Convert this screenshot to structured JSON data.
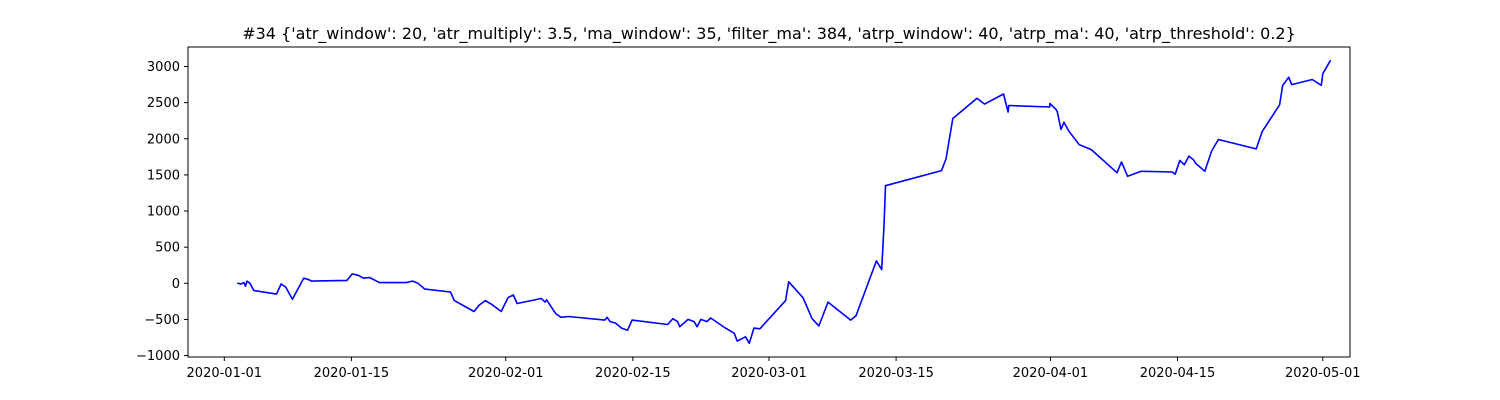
{
  "chart_data": {
    "type": "line",
    "title": "#34 {'atr_window': 20, 'atr_multiply': 3.5, 'ma_window': 35, 'filter_ma': 384, 'atrp_window': 40, 'atrp_ma': 40, 'atrp_threshold': 0.2}",
    "xlabel": "",
    "ylabel": "",
    "xlim": [
      "2019-12-28",
      "2020-05-04"
    ],
    "ylim": [
      -1020,
      3270
    ],
    "grid": false,
    "legend": "none",
    "x_ticks": [
      {
        "date": "2020-01-01",
        "label": "2020-01-01"
      },
      {
        "date": "2020-01-15",
        "label": "2020-01-15"
      },
      {
        "date": "2020-02-01",
        "label": "2020-02-01"
      },
      {
        "date": "2020-02-15",
        "label": "2020-02-15"
      },
      {
        "date": "2020-03-01",
        "label": "2020-03-01"
      },
      {
        "date": "2020-03-15",
        "label": "2020-03-15"
      },
      {
        "date": "2020-04-01",
        "label": "2020-04-01"
      },
      {
        "date": "2020-04-15",
        "label": "2020-04-15"
      },
      {
        "date": "2020-05-01",
        "label": "2020-05-01"
      }
    ],
    "y_ticks": [
      {
        "value": -1000,
        "label": "−1000"
      },
      {
        "value": -500,
        "label": "−500"
      },
      {
        "value": 0,
        "label": "0"
      },
      {
        "value": 500,
        "label": "500"
      },
      {
        "value": 1000,
        "label": "1000"
      },
      {
        "value": 1500,
        "label": "1500"
      },
      {
        "value": 2000,
        "label": "2000"
      },
      {
        "value": 2500,
        "label": "2500"
      },
      {
        "value": 3000,
        "label": "3000"
      }
    ],
    "series": [
      {
        "color": "#0000ff",
        "points": [
          [
            "2020-01-02 12:00",
            0
          ],
          [
            "2020-01-02 20:00",
            -10
          ],
          [
            "2020-01-03 04:00",
            10
          ],
          [
            "2020-01-03 08:00",
            -40
          ],
          [
            "2020-01-03 12:00",
            30
          ],
          [
            "2020-01-03 20:00",
            0
          ],
          [
            "2020-01-04 06:00",
            -100
          ],
          [
            "2020-01-06 18:00",
            -150
          ],
          [
            "2020-01-07 06:00",
            -10
          ],
          [
            "2020-01-07 18:00",
            -50
          ],
          [
            "2020-01-08 12:00",
            -220
          ],
          [
            "2020-01-09 18:00",
            70
          ],
          [
            "2020-01-10 08:00",
            50
          ],
          [
            "2020-01-10 14:00",
            30
          ],
          [
            "2020-01-14 12:00",
            40
          ],
          [
            "2020-01-15 02:00",
            130
          ],
          [
            "2020-01-15 18:00",
            110
          ],
          [
            "2020-01-16 08:00",
            70
          ],
          [
            "2020-01-17 00:00",
            80
          ],
          [
            "2020-01-18 02:00",
            10
          ],
          [
            "2020-01-21 00:00",
            10
          ],
          [
            "2020-01-21 18:00",
            30
          ],
          [
            "2020-01-22 08:00",
            0
          ],
          [
            "2020-01-23 02:00",
            -80
          ],
          [
            "2020-01-25 22:00",
            -120
          ],
          [
            "2020-01-26 08:00",
            -240
          ],
          [
            "2020-01-28 12:00",
            -390
          ],
          [
            "2020-01-29 02:00",
            -300
          ],
          [
            "2020-01-29 18:00",
            -240
          ],
          [
            "2020-01-30 10:00",
            -290
          ],
          [
            "2020-01-31 12:00",
            -390
          ],
          [
            "2020-02-01 06:00",
            -200
          ],
          [
            "2020-02-01 20:00",
            -160
          ],
          [
            "2020-02-02 06:00",
            -280
          ],
          [
            "2020-02-04 22:00",
            -210
          ],
          [
            "2020-02-05 08:00",
            -260
          ],
          [
            "2020-02-05 12:00",
            -230
          ],
          [
            "2020-02-06 12:00",
            -420
          ],
          [
            "2020-02-07 02:00",
            -470
          ],
          [
            "2020-02-07 22:00",
            -460
          ],
          [
            "2020-02-11 22:00",
            -510
          ],
          [
            "2020-02-12 04:00",
            -470
          ],
          [
            "2020-02-12 12:00",
            -530
          ],
          [
            "2020-02-13 02:00",
            -550
          ],
          [
            "2020-02-13 18:00",
            -620
          ],
          [
            "2020-02-14 10:00",
            -650
          ],
          [
            "2020-02-14 22:00",
            -510
          ],
          [
            "2020-02-18 20:00",
            -570
          ],
          [
            "2020-02-19 10:00",
            -490
          ],
          [
            "2020-02-19 22:00",
            -530
          ],
          [
            "2020-02-20 04:00",
            -600
          ],
          [
            "2020-02-21 02:00",
            -500
          ],
          [
            "2020-02-21 18:00",
            -530
          ],
          [
            "2020-02-22 02:00",
            -600
          ],
          [
            "2020-02-22 12:00",
            -500
          ],
          [
            "2020-02-23 04:00",
            -530
          ],
          [
            "2020-02-23 14:00",
            -480
          ],
          [
            "2020-02-25 02:00",
            -610
          ],
          [
            "2020-02-26 04:00",
            -690
          ],
          [
            "2020-02-26 12:00",
            -800
          ],
          [
            "2020-02-27 10:00",
            -740
          ],
          [
            "2020-02-27 20:00",
            -830
          ],
          [
            "2020-02-28 08:00",
            -620
          ],
          [
            "2020-02-29 00:00",
            -630
          ],
          [
            "2020-03-02 20:00",
            -240
          ],
          [
            "2020-03-03 04:00",
            20
          ],
          [
            "2020-03-04 18:00",
            -200
          ],
          [
            "2020-03-05 18:00",
            -490
          ],
          [
            "2020-03-06 12:00",
            -590
          ],
          [
            "2020-03-07 12:00",
            -260
          ],
          [
            "2020-03-10 00:00",
            -510
          ],
          [
            "2020-03-10 14:00",
            -450
          ],
          [
            "2020-03-12 20:00",
            310
          ],
          [
            "2020-03-13 10:00",
            190
          ],
          [
            "2020-03-13 16:00",
            800
          ],
          [
            "2020-03-13 20:00",
            1350
          ],
          [
            "2020-03-20 00:00",
            1560
          ],
          [
            "2020-03-20 12:00",
            1720
          ],
          [
            "2020-03-21 06:00",
            2280
          ],
          [
            "2020-03-23 22:00",
            2560
          ],
          [
            "2020-03-24 18:00",
            2480
          ],
          [
            "2020-03-26 20:00",
            2620
          ],
          [
            "2020-03-27 08:00",
            2370
          ],
          [
            "2020-03-27 10:00",
            2460
          ],
          [
            "2020-03-31 22:00",
            2440
          ],
          [
            "2020-03-31 22:30",
            2490
          ],
          [
            "2020-04-01 14:00",
            2410
          ],
          [
            "2020-04-01 18:00",
            2380
          ],
          [
            "2020-04-02 04:00",
            2130
          ],
          [
            "2020-04-02 12:00",
            2230
          ],
          [
            "2020-04-03 00:00",
            2110
          ],
          [
            "2020-04-04 04:00",
            1920
          ],
          [
            "2020-04-05 12:00",
            1850
          ],
          [
            "2020-04-08 08:00",
            1530
          ],
          [
            "2020-04-08 20:00",
            1680
          ],
          [
            "2020-04-09 12:00",
            1480
          ],
          [
            "2020-04-11 00:00",
            1550
          ],
          [
            "2020-04-14 10:00",
            1540
          ],
          [
            "2020-04-14 18:00",
            1510
          ],
          [
            "2020-04-15 06:00",
            1700
          ],
          [
            "2020-04-15 18:00",
            1640
          ],
          [
            "2020-04-16 06:00",
            1760
          ],
          [
            "2020-04-16 18:00",
            1710
          ],
          [
            "2020-04-17 00:00",
            1660
          ],
          [
            "2020-04-18 00:00",
            1550
          ],
          [
            "2020-04-18 18:00",
            1830
          ],
          [
            "2020-04-19 12:00",
            1990
          ],
          [
            "2020-04-23 16:00",
            1860
          ],
          [
            "2020-04-24 08:00",
            2100
          ],
          [
            "2020-04-26 06:00",
            2470
          ],
          [
            "2020-04-26 14:00",
            2740
          ],
          [
            "2020-04-27 06:00",
            2850
          ],
          [
            "2020-04-27 14:00",
            2750
          ],
          [
            "2020-04-29 20:00",
            2820
          ],
          [
            "2020-04-30 20:00",
            2740
          ],
          [
            "2020-05-01 00:00",
            2900
          ],
          [
            "2020-05-01 20:00",
            3080
          ]
        ]
      }
    ]
  }
}
